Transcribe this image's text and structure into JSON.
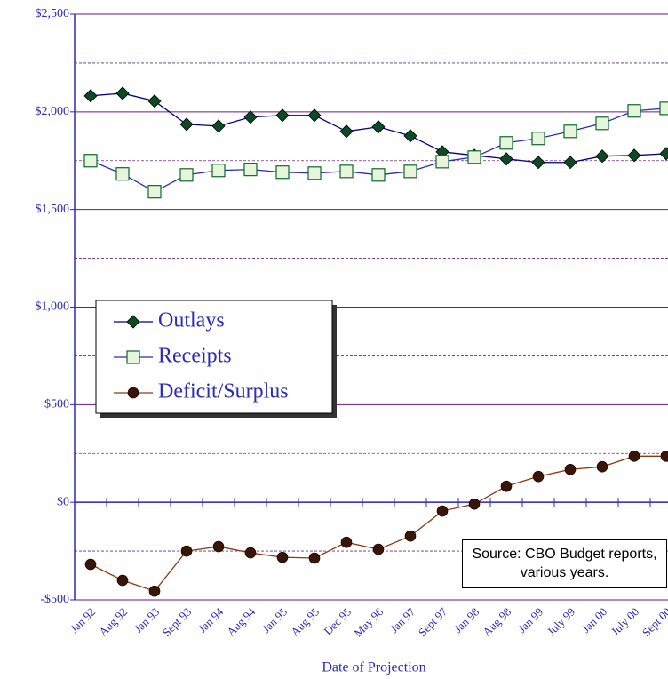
{
  "chart_data": {
    "type": "line",
    "x_label": "Date of Projection",
    "annotation": "Source: CBO Budget reports, various years.",
    "categories": [
      "Jan 92",
      "Aug 92",
      "Jan 93",
      "Sept 93",
      "Jan 94",
      "Aug 94",
      "Jan 95",
      "Aug 95",
      "Dec 95",
      "May 96",
      "Jan 97",
      "Sept 97",
      "Jan 98",
      "Aug 98",
      "Jan 99",
      "July 99",
      "Jan 00",
      "July 00",
      "Sept 00"
    ],
    "series": [
      {
        "name": "Outlays",
        "color": "#000080",
        "marker": "diamond",
        "marker_color": "#0b4a24",
        "values": [
          2082,
          2095,
          2055,
          1936,
          1927,
          1973,
          1982,
          1982,
          1900,
          1923,
          1877,
          1795,
          1777,
          1759,
          1741,
          1741,
          1773,
          1777,
          1786
        ]
      },
      {
        "name": "Receipts",
        "color": "#2b2bb8",
        "marker": "square",
        "marker_color": "#0b6a24",
        "values": [
          1750,
          1682,
          1591,
          1677,
          1700,
          1705,
          1691,
          1686,
          1695,
          1677,
          1695,
          1745,
          1768,
          1841,
          1864,
          1900,
          1941,
          2005,
          2018
        ]
      },
      {
        "name": "Deficit/Surplus",
        "color": "#8b3a0f",
        "marker": "circle",
        "marker_color": "#3a1505",
        "values": [
          -318,
          -400,
          -455,
          -250,
          -227,
          -259,
          -282,
          -286,
          -205,
          -241,
          -173,
          -45,
          -9,
          82,
          132,
          168,
          182,
          236,
          236
        ]
      }
    ],
    "ylim": [
      -500,
      2500
    ],
    "yticks": [
      {
        "value": -500,
        "label": "-$500"
      },
      {
        "value": 0,
        "label": "$0"
      },
      {
        "value": 500,
        "label": "$500"
      },
      {
        "value": 1000,
        "label": "$1,000"
      },
      {
        "value": 1500,
        "label": "$1,500"
      },
      {
        "value": 2000,
        "label": "$2,000"
      },
      {
        "value": 2500,
        "label": "$2,500"
      }
    ],
    "minor_yticks": [
      -250,
      250,
      750,
      1250,
      1750,
      2250
    ],
    "grid": true,
    "legend": "left"
  }
}
